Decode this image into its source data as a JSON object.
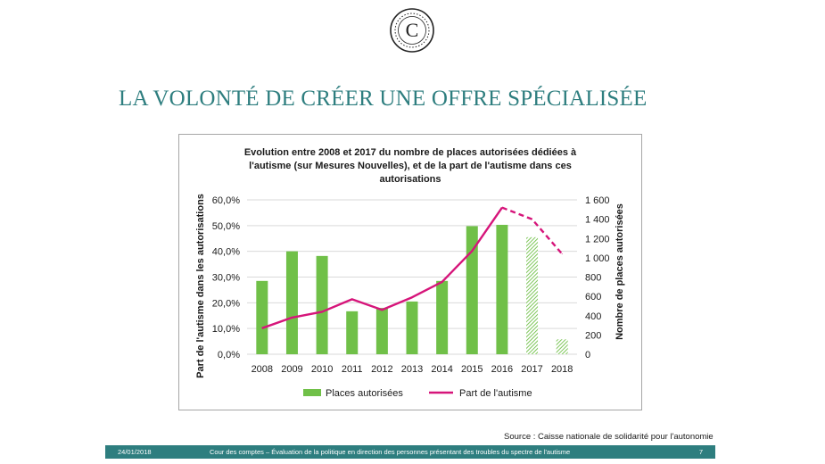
{
  "slide": {
    "logo_letter": "C",
    "title": "LA VOLONTÉ DE CRÉER UNE OFFRE SPÉCIALISÉE",
    "source": "Source : Caisse nationale de solidarité pour l'autonomie"
  },
  "footer": {
    "date": "24/01/2018",
    "text": "Cour des comptes – Évaluation de la politique en direction des personnes présentant des troubles du spectre de l'autisme",
    "page": "7"
  },
  "colors": {
    "accent": "#2e7e7f",
    "bar": "#70c048",
    "line": "#d6157a"
  },
  "chart_data": {
    "type": "bar",
    "title_lines": [
      "Evolution entre 2008 et 2017 du nombre de places autorisées dédiées à",
      "l'autisme (sur Mesures Nouvelles), et de la part de l'autisme dans ces",
      "autorisations"
    ],
    "categories": [
      "2008",
      "2009",
      "2010",
      "2011",
      "2012",
      "2013",
      "2014",
      "2015",
      "2016",
      "2017",
      "2018"
    ],
    "ylabel_left": "Part de l'autisme dans les autorisations",
    "ylabel_right": "Nombre de places autorisées",
    "ylim_left": [
      0,
      60
    ],
    "ylim_right": [
      0,
      1600
    ],
    "yticks_left": [
      "0,0%",
      "10,0%",
      "20,0%",
      "30,0%",
      "40,0%",
      "50,0%",
      "60,0%"
    ],
    "yticks_right": [
      "0",
      "200",
      "400",
      "600",
      "800",
      "1 000",
      "1 200",
      "1 400",
      "1 600"
    ],
    "grid": true,
    "legend_position": "bottom",
    "series": [
      {
        "name": "Places autorisées",
        "axis": "left",
        "kind": "bar",
        "values": [
          28.5,
          40.0,
          38.2,
          16.7,
          18.0,
          20.5,
          28.5,
          49.8,
          50.3,
          45.5,
          5.8
        ],
        "hatched_from_index": 9
      },
      {
        "name": "Part de l'autisme",
        "axis": "right",
        "kind": "line",
        "values": [
          270,
          380,
          440,
          570,
          460,
          590,
          750,
          1070,
          1520,
          1400,
          1040
        ],
        "dashed_from_index": 8
      }
    ]
  }
}
